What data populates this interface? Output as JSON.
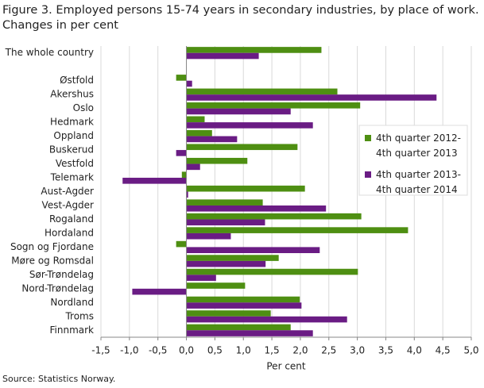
{
  "chart_data": {
    "type": "hbar",
    "title": "Figure 3. Employed persons 15-74 years in secondary industries, by place of work. Changes in per cent",
    "source": "Source: Statistics Norway.",
    "xlabel": "Per cent",
    "categories": [
      "The whole country",
      null,
      "Østfold",
      "Akershus",
      "Oslo",
      "Hedmark",
      "Oppland",
      "Buskerud",
      "Vestfold",
      "Telemark",
      "Aust-Agder",
      "Vest-Agder",
      "Rogaland",
      "Hordaland",
      "Sogn og Fjordane",
      "Møre og Romsdal",
      "Sør-Trøndelag",
      "Nord-Trøndelag",
      "Nordland",
      "Troms",
      "Finnmark"
    ],
    "series": [
      {
        "name": "4th quarter 2012-4th quarter 2013",
        "color": "#4e8f12",
        "values": [
          2.37,
          null,
          -0.18,
          2.65,
          3.05,
          0.32,
          0.45,
          1.95,
          1.07,
          -0.08,
          2.08,
          1.34,
          3.07,
          3.89,
          -0.18,
          1.62,
          3.01,
          1.03,
          1.99,
          1.48,
          1.83
        ]
      },
      {
        "name": "4th quarter 2013-4th quarter 2014",
        "color": "#6a1c84",
        "values": [
          1.27,
          null,
          0.1,
          4.39,
          1.83,
          2.22,
          0.89,
          -0.18,
          0.24,
          -1.12,
          0.03,
          2.45,
          1.38,
          0.78,
          2.34,
          1.39,
          0.52,
          -0.95,
          2.02,
          2.82,
          2.22
        ]
      }
    ],
    "xlim": [
      -1.5,
      5.0
    ],
    "xticks": [
      {
        "value": -1.5,
        "label": "-1,5"
      },
      {
        "value": -1.0,
        "label": "-1,0"
      },
      {
        "value": -0.5,
        "label": "-0,5"
      },
      {
        "value": 0,
        "label": "0,0"
      },
      {
        "value": 0.5,
        "label": "0,5"
      },
      {
        "value": 1.0,
        "label": "1,0"
      },
      {
        "value": 1.5,
        "label": "1,5"
      },
      {
        "value": 2.0,
        "label": "2,0"
      },
      {
        "value": 2.5,
        "label": "2,5"
      },
      {
        "value": 3.0,
        "label": "3,0"
      },
      {
        "value": 3.5,
        "label": "3,5"
      },
      {
        "value": 4.0,
        "label": "4,0"
      },
      {
        "value": 4.5,
        "label": "4,5"
      },
      {
        "value": 5.0,
        "label": "5,0"
      }
    ],
    "grid": true
  }
}
